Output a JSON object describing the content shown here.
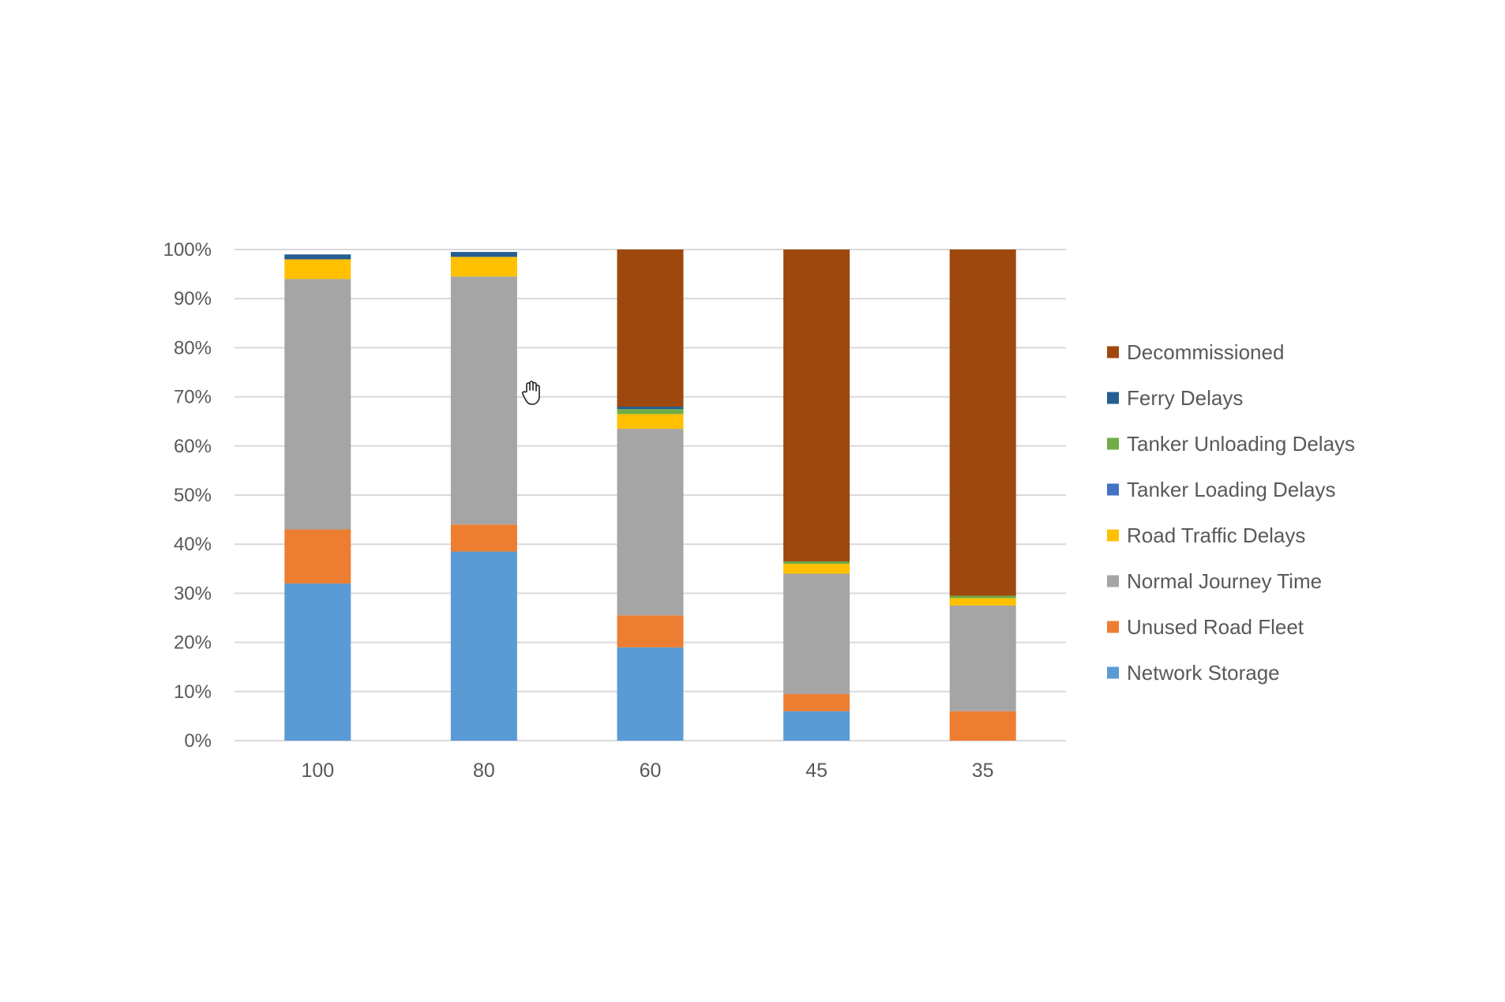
{
  "chart_data": {
    "type": "bar",
    "stacked": true,
    "percent": true,
    "title": "",
    "xlabel": "",
    "ylabel": "",
    "ylim": [
      0,
      100
    ],
    "y_ticks": [
      "0%",
      "10%",
      "20%",
      "30%",
      "40%",
      "50%",
      "60%",
      "70%",
      "80%",
      "90%",
      "100%"
    ],
    "grid": true,
    "legend_position": "right",
    "categories": [
      "100",
      "80",
      "60",
      "45",
      "35"
    ],
    "series": [
      {
        "name": "Network Storage",
        "color": "#5b9bd5",
        "values": [
          32,
          38.5,
          19,
          6,
          0
        ]
      },
      {
        "name": "Unused Road Fleet",
        "color": "#ed7d31",
        "values": [
          11,
          5.5,
          6.5,
          3.5,
          6
        ]
      },
      {
        "name": "Normal Journey Time",
        "color": "#a5a5a5",
        "values": [
          51,
          50.5,
          38,
          24.5,
          21.5
        ]
      },
      {
        "name": "Road Traffic Delays",
        "color": "#ffc000",
        "values": [
          4,
          4,
          3,
          2,
          1.5
        ]
      },
      {
        "name": "Tanker Loading Delays",
        "color": "#4472c4",
        "values": [
          0,
          0,
          0,
          0,
          0
        ]
      },
      {
        "name": "Tanker Unloading Delays",
        "color": "#70ad47",
        "values": [
          0,
          0,
          1,
          0.5,
          0.5
        ]
      },
      {
        "name": "Ferry Delays",
        "color": "#255e91",
        "values": [
          1,
          1,
          0.5,
          0,
          0
        ]
      },
      {
        "name": "Decommissioned",
        "color": "#9e480e",
        "values": [
          0,
          0,
          32,
          63.5,
          70.5
        ]
      }
    ],
    "legend_order": [
      "Decommissioned",
      "Ferry Delays",
      "Tanker Unloading Delays",
      "Tanker Loading Delays",
      "Road Traffic Delays",
      "Normal Journey Time",
      "Unused Road Fleet",
      "Network Storage"
    ]
  },
  "cursor": {
    "icon": "hand-cursor-icon"
  }
}
